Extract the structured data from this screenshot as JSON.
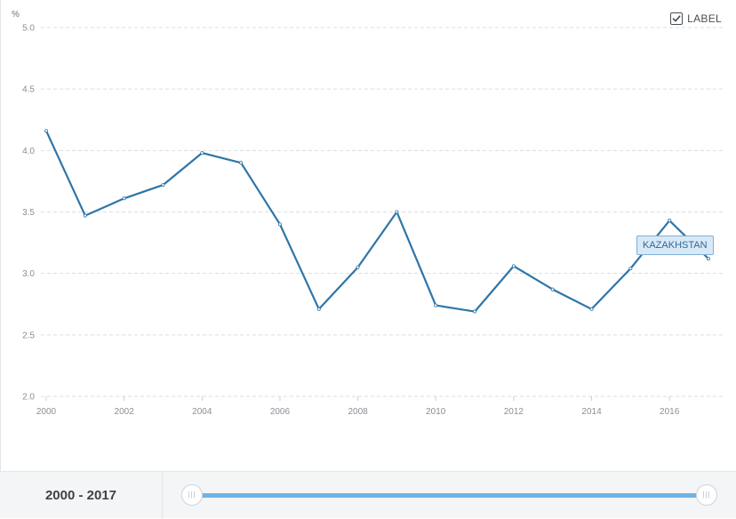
{
  "chart_data": {
    "type": "line",
    "unit_label": "%",
    "ylim": [
      2.0,
      5.0
    ],
    "yticks": [
      "5.0",
      "4.5",
      "4.0",
      "3.5",
      "3.0",
      "2.5",
      "2.0"
    ],
    "xlim": [
      2000,
      2017
    ],
    "xticks": [
      "2000",
      "2002",
      "2004",
      "2006",
      "2008",
      "2010",
      "2012",
      "2014",
      "2016"
    ],
    "grid": true,
    "series": [
      {
        "name": "KAZAKHSTAN",
        "color": "#2e75a8",
        "x": [
          2000,
          2001,
          2002,
          2003,
          2004,
          2005,
          2006,
          2007,
          2008,
          2009,
          2010,
          2011,
          2012,
          2013,
          2014,
          2015,
          2016,
          2017
        ],
        "values": [
          4.16,
          3.47,
          3.61,
          3.72,
          3.98,
          3.9,
          3.4,
          2.71,
          3.05,
          3.5,
          2.74,
          2.69,
          3.06,
          2.87,
          2.71,
          3.04,
          3.43,
          3.12
        ]
      }
    ]
  },
  "controls": {
    "label_toggle_text": "LABEL",
    "label_checked": true,
    "year_range_text": "2000 - 2017"
  }
}
